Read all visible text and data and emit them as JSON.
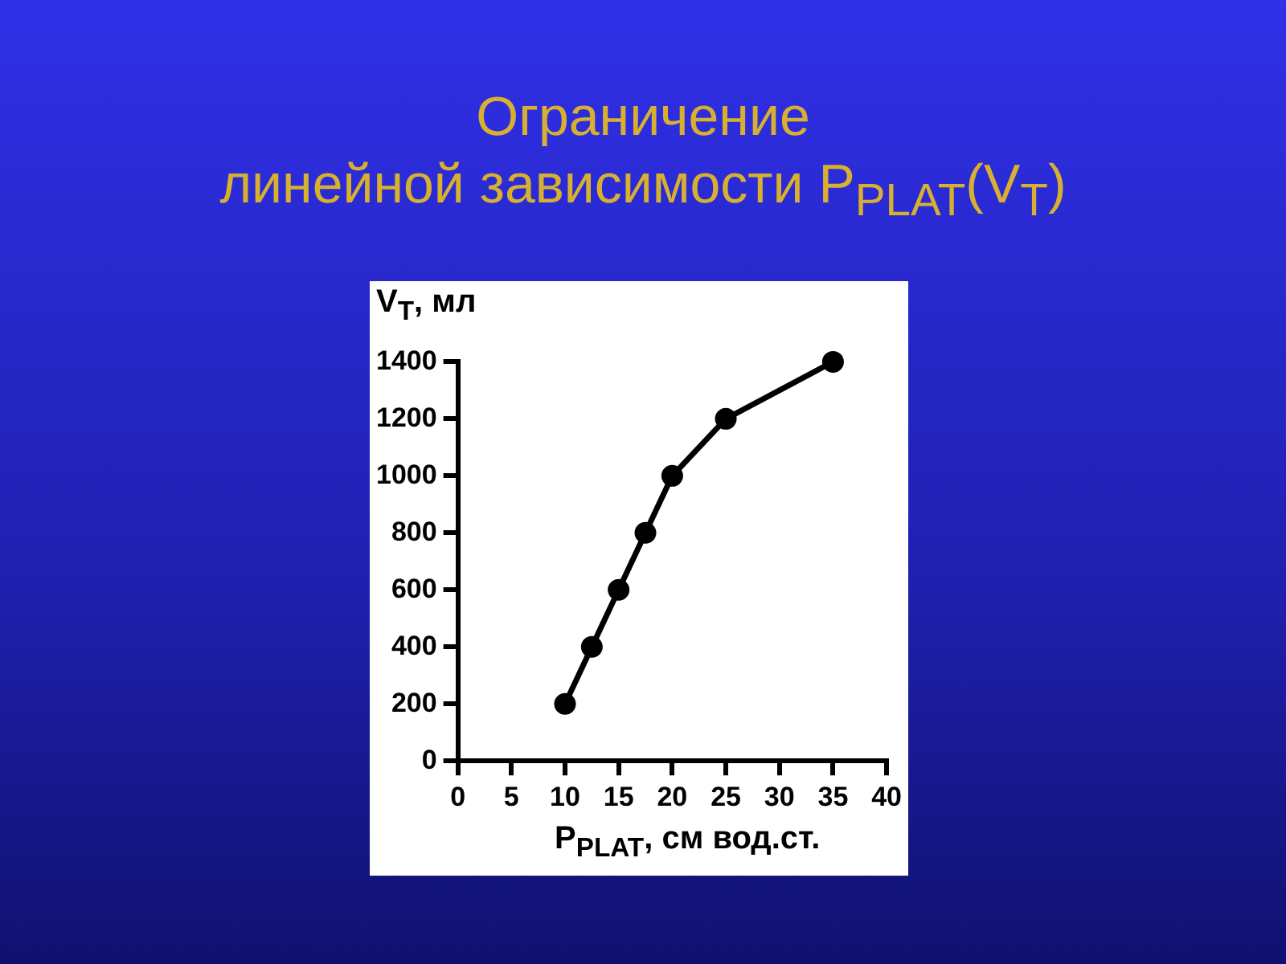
{
  "chart_data": {
    "type": "line",
    "title": "Ограничение\nлинейной зависимости P$_{PLAT}$(V$_{T}$)",
    "xlabel": "P$_{PLAT}$, см вод.ст.",
    "ylabel": "V$_{T}$, мл",
    "series": [
      {
        "color": "#000000",
        "x": [
          10,
          12.5,
          15,
          17.5,
          20,
          25,
          35
        ],
        "values": [
          200,
          400,
          600,
          800,
          1000,
          1200,
          1400
        ]
      }
    ],
    "xlim": [
      0,
      40
    ],
    "xticks": [
      0,
      5,
      10,
      15,
      20,
      25,
      30,
      35,
      40
    ],
    "ylim": [
      0,
      1400
    ],
    "yticks": [
      0,
      200,
      400,
      600,
      800,
      1000,
      1200,
      1400
    ],
    "grid": false,
    "legend": false,
    "marker": "circle",
    "line_style": "solid"
  }
}
